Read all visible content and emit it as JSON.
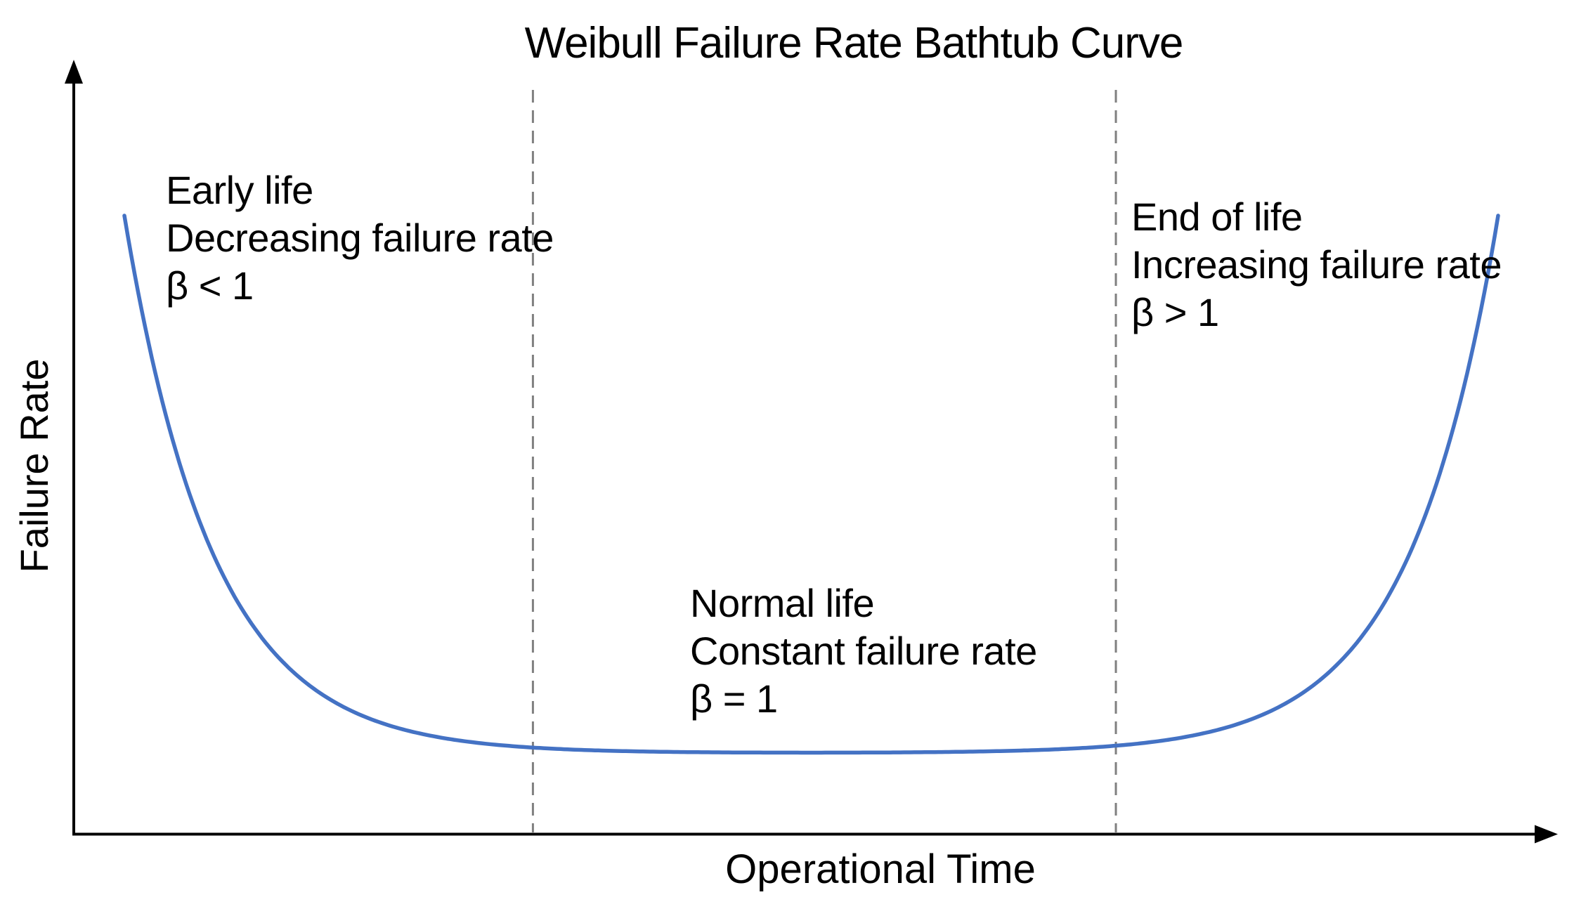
{
  "title": "Weibull Failure Rate Bathtub Curve",
  "colors": {
    "curve": "#4472C4",
    "boundary_dash": "#808080",
    "axis": "#000000",
    "text": "#000000",
    "background": "#ffffff"
  },
  "chart_data": {
    "type": "line",
    "title": "Weibull Failure Rate Bathtub Curve",
    "xlabel": "Operational Time",
    "ylabel": "Failure Rate",
    "x_range": [
      0,
      1
    ],
    "y_range": [
      0,
      1
    ],
    "ticks": "none",
    "grid": false,
    "legend": false,
    "axis_arrows": true,
    "region_boundaries": [
      0.31,
      0.703
    ],
    "regions": [
      {
        "name": "Early life",
        "description": "Decreasing failure rate",
        "beta": "β < 1",
        "x_span": [
          0,
          0.31
        ]
      },
      {
        "name": "Normal life",
        "description": "Constant failure rate",
        "beta": "β = 1",
        "x_span": [
          0.31,
          0.703
        ]
      },
      {
        "name": "End of life",
        "description": "Increasing failure rate",
        "beta": "β > 1",
        "x_span": [
          0.703,
          1
        ]
      }
    ],
    "series": [
      {
        "name": "Weibull failure rate",
        "color": "#4472C4",
        "model": "bathtub: v(t) = flat + (peak - flat) * (exp(-t/tau) + exp(-(1-t)/tau)), t normalized over curve span",
        "params": {
          "flat": 0.131,
          "peak": 1.0,
          "tau": 0.065,
          "x_start": 0.0346,
          "x_end": 0.9607
        },
        "points": [
          [
            0.0,
            1.0
          ],
          [
            0.01,
            0.876
          ],
          [
            0.02,
            0.77
          ],
          [
            0.03,
            0.679
          ],
          [
            0.05,
            0.534
          ],
          [
            0.07,
            0.427
          ],
          [
            0.1,
            0.318
          ],
          [
            0.13,
            0.249
          ],
          [
            0.16,
            0.205
          ],
          [
            0.2,
            0.171
          ],
          [
            0.25,
            0.15
          ],
          [
            0.31,
            0.138
          ],
          [
            0.4,
            0.133
          ],
          [
            0.5,
            0.132
          ],
          [
            0.6,
            0.133
          ],
          [
            0.69,
            0.138
          ],
          [
            0.75,
            0.15
          ],
          [
            0.8,
            0.171
          ],
          [
            0.84,
            0.205
          ],
          [
            0.87,
            0.249
          ],
          [
            0.9,
            0.318
          ],
          [
            0.93,
            0.427
          ],
          [
            0.95,
            0.534
          ],
          [
            0.97,
            0.679
          ],
          [
            0.98,
            0.77
          ],
          [
            0.99,
            0.876
          ],
          [
            1.0,
            1.0
          ]
        ]
      }
    ]
  }
}
